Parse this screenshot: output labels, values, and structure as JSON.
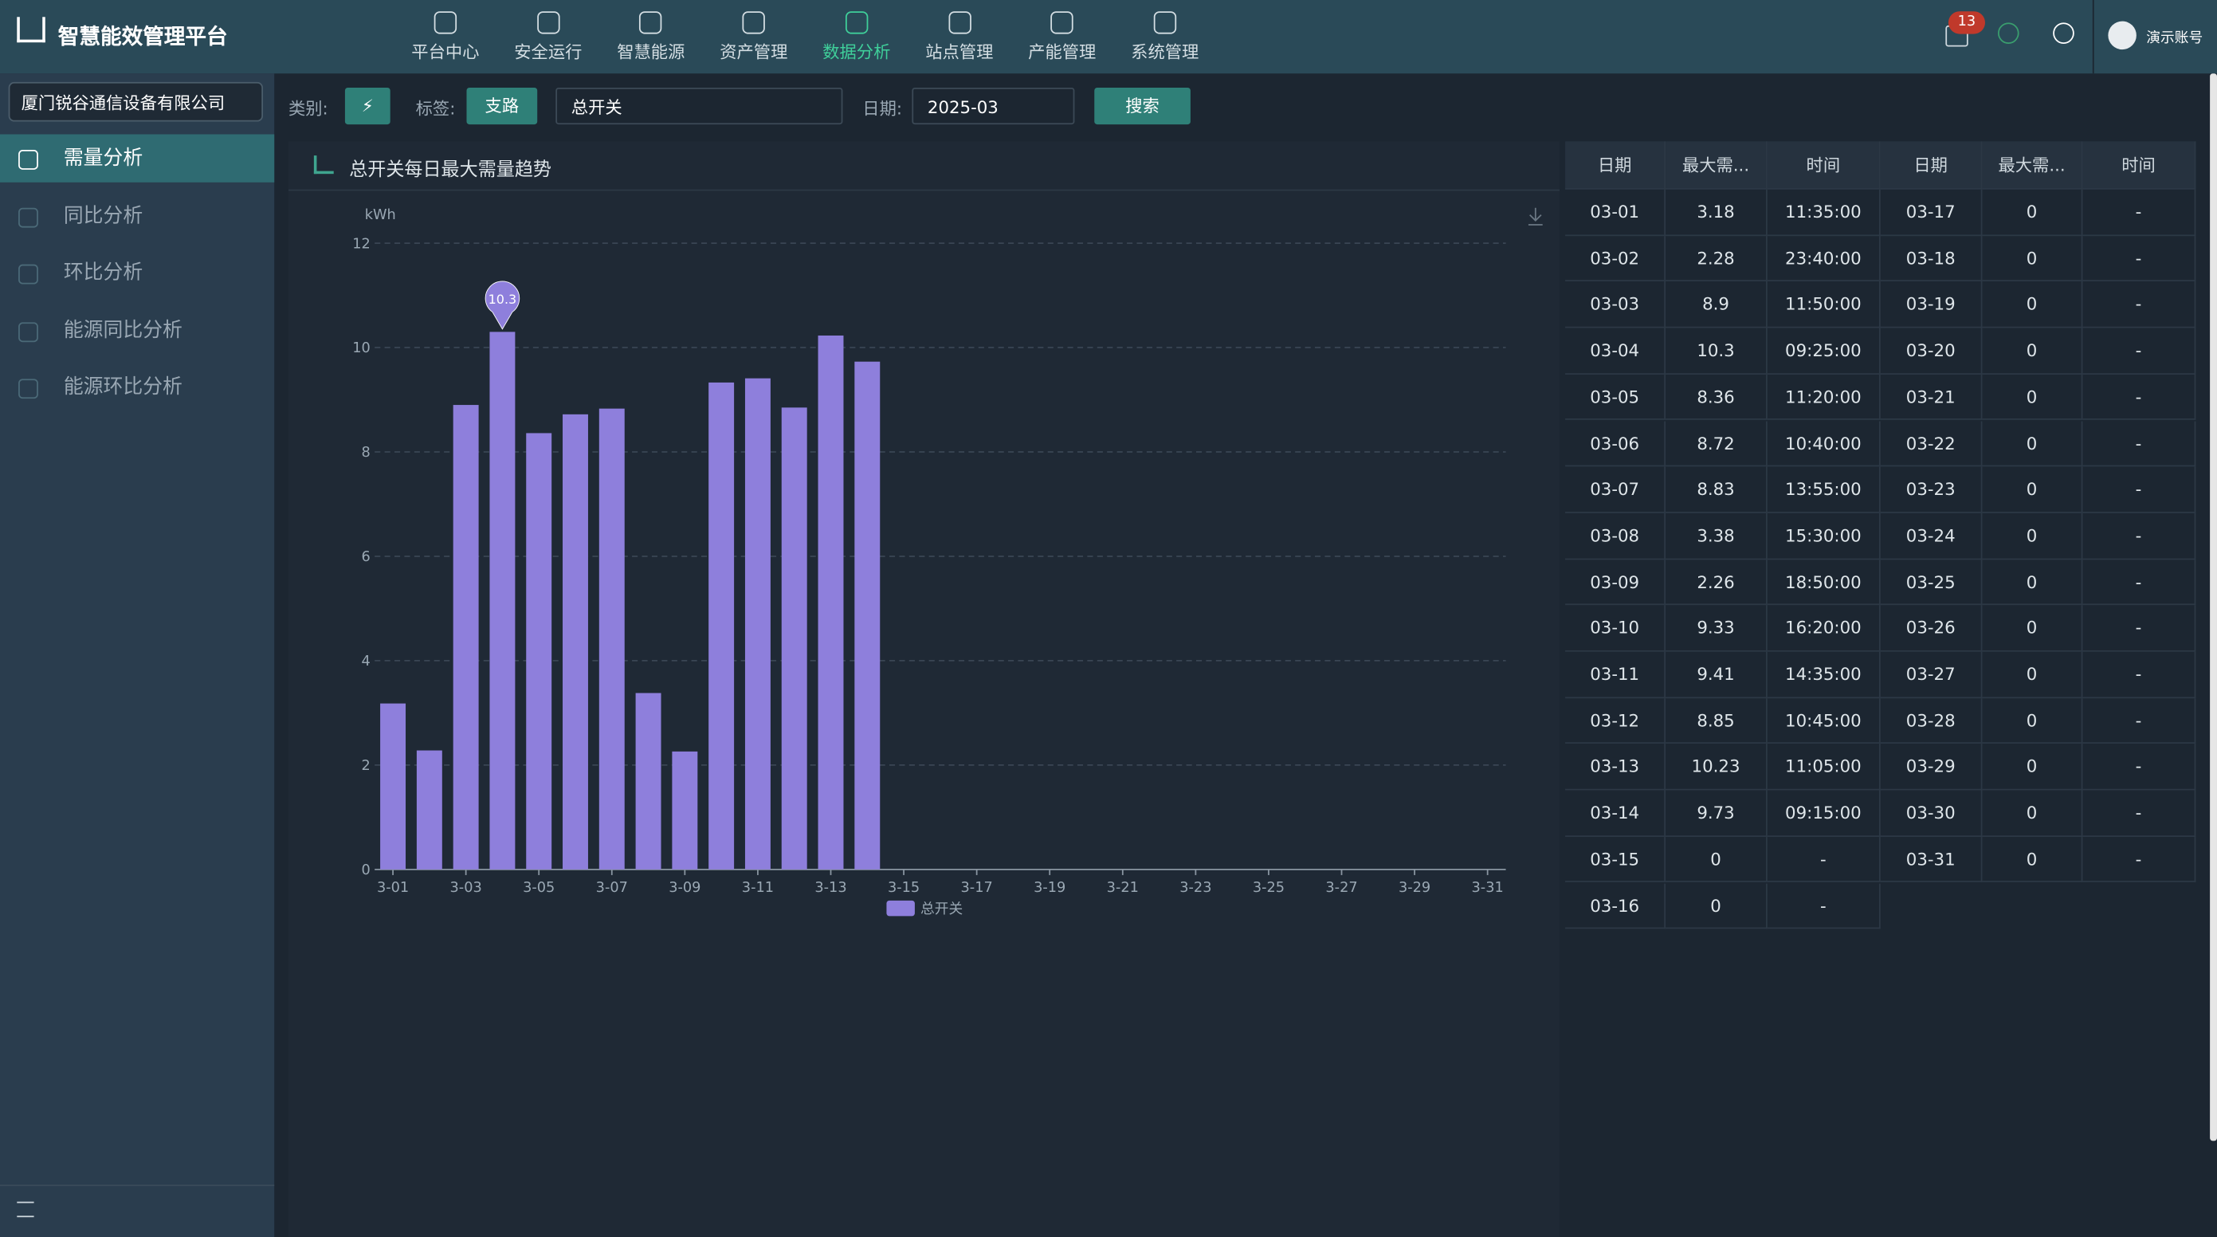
{
  "app_title": "智慧能效管理平台",
  "nav": [
    "平台中心",
    "安全运行",
    "智慧能源",
    "资产管理",
    "数据分析",
    "站点管理",
    "产能管理",
    "系统管理"
  ],
  "nav_active": 4,
  "badge": 13,
  "user": "演示账号",
  "company": "厦门锐谷通信设备有限公司",
  "sidebar": [
    "需量分析",
    "同比分析",
    "环比分析",
    "能源同比分析",
    "能源环比分析"
  ],
  "sidebar_active": 0,
  "filters": {
    "category_label": "类别:",
    "tag_label": "标签:",
    "tag": "支路",
    "switch": "总开关",
    "date_label": "日期:",
    "date": "2025-03",
    "search": "搜索"
  },
  "chart_data": {
    "type": "bar",
    "title": "总开关每日最大需量趋势",
    "y_label": "kWh",
    "categories": [
      "3-01",
      null,
      "3-03",
      null,
      "3-05",
      null,
      "3-07",
      null,
      "3-09",
      null,
      "3-11",
      null,
      "3-13",
      null,
      "3-15",
      null,
      "3-17",
      null,
      "3-19",
      null,
      "3-21",
      null,
      "3-23",
      null,
      "3-25",
      null,
      "3-27",
      null,
      "3-29",
      null,
      "3-31"
    ],
    "series": [
      {
        "name": "总开关",
        "color": "#8e7fdc",
        "values": [
          3.18,
          2.28,
          8.9,
          10.3,
          8.36,
          8.72,
          8.83,
          3.38,
          2.26,
          9.33,
          9.41,
          8.85,
          10.23,
          9.73,
          0,
          0,
          0,
          0,
          0,
          0,
          0,
          0,
          0,
          0,
          0,
          0,
          0,
          0,
          0,
          0,
          0
        ]
      }
    ],
    "ylim": [
      0,
      12
    ],
    "yticks": [
      0,
      2,
      4,
      6,
      8,
      10,
      12
    ],
    "grid": true,
    "markpoint": "max",
    "legend": "bottom"
  },
  "table": {
    "headers": [
      "日期",
      "最大需...",
      "时间",
      "日期",
      "最大需...",
      "时间"
    ],
    "rows": [
      [
        "03-01",
        3.18,
        "11:35:00",
        "03-17",
        0,
        "-"
      ],
      [
        "03-02",
        2.28,
        "23:40:00",
        "03-18",
        0,
        "-"
      ],
      [
        "03-03",
        8.9,
        "11:50:00",
        "03-19",
        0,
        "-"
      ],
      [
        "03-04",
        10.3,
        "09:25:00",
        "03-20",
        0,
        "-"
      ],
      [
        "03-05",
        8.36,
        "11:20:00",
        "03-21",
        0,
        "-"
      ],
      [
        "03-06",
        8.72,
        "10:40:00",
        "03-22",
        0,
        "-"
      ],
      [
        "03-07",
        8.83,
        "13:55:00",
        "03-23",
        0,
        "-"
      ],
      [
        "03-08",
        3.38,
        "15:30:00",
        "03-24",
        0,
        "-"
      ],
      [
        "03-09",
        2.26,
        "18:50:00",
        "03-25",
        0,
        "-"
      ],
      [
        "03-10",
        9.33,
        "16:20:00",
        "03-26",
        0,
        "-"
      ],
      [
        "03-11",
        9.41,
        "14:35:00",
        "03-27",
        0,
        "-"
      ],
      [
        "03-12",
        8.85,
        "10:45:00",
        "03-28",
        0,
        "-"
      ],
      [
        "03-13",
        10.23,
        "11:05:00",
        "03-29",
        0,
        "-"
      ],
      [
        "03-14",
        9.73,
        "09:15:00",
        "03-30",
        0,
        "-"
      ],
      [
        "03-15",
        0,
        "-",
        "03-31",
        0,
        "-"
      ],
      [
        "03-16",
        0,
        "-"
      ]
    ]
  }
}
